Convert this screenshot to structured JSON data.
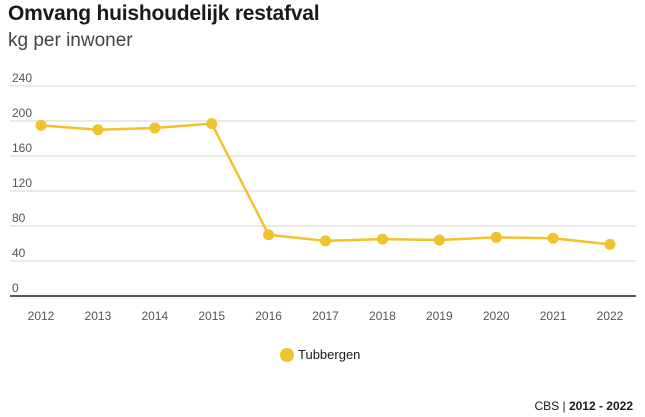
{
  "header": {
    "title": "Omvang huishoudelijk restafval",
    "subtitle": "kg per inwoner"
  },
  "source": {
    "label": "CBS",
    "separator": "|",
    "period": "2012 - 2022"
  },
  "colors": {
    "series": "#f2c12e",
    "grid": "#d6d6d6",
    "axis": "#222222"
  },
  "chart_data": {
    "type": "line",
    "title": "Omvang huishoudelijk restafval",
    "subtitle": "kg per inwoner",
    "xlabel": "",
    "ylabel": "",
    "categories": [
      "2012",
      "2013",
      "2014",
      "2015",
      "2016",
      "2017",
      "2018",
      "2019",
      "2020",
      "2021",
      "2022"
    ],
    "yticks": [
      0,
      40,
      80,
      120,
      160,
      200,
      240
    ],
    "ylim": [
      0,
      240
    ],
    "grid": true,
    "legend_position": "bottom",
    "series": [
      {
        "name": "Tubbergen",
        "color": "#f2c12e",
        "values": [
          195,
          190,
          192,
          197,
          70,
          63,
          65,
          64,
          67,
          66,
          59
        ]
      }
    ]
  }
}
